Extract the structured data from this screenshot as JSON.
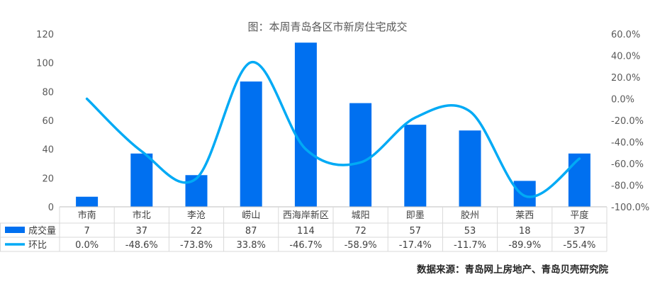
{
  "chart_data": {
    "type": "bar",
    "title": "图：本周青岛各区市新房住宅成交",
    "categories": [
      "市南",
      "市北",
      "李沧",
      "崂山",
      "西海岸新区",
      "城阳",
      "即墨",
      "胶州",
      "莱西",
      "平度"
    ],
    "series": [
      {
        "name": "成交量",
        "type": "bar",
        "axis": "left",
        "color": "#0070F0",
        "values": [
          7,
          37,
          22,
          87,
          114,
          72,
          57,
          53,
          18,
          37
        ],
        "labels": [
          "7",
          "37",
          "22",
          "87",
          "114",
          "72",
          "57",
          "53",
          "18",
          "37"
        ]
      },
      {
        "name": "环比",
        "type": "line",
        "axis": "right",
        "color": "#00AAF5",
        "values": [
          0.0,
          -48.6,
          -73.8,
          33.8,
          -46.7,
          -58.9,
          -17.4,
          -11.7,
          -89.9,
          -55.4
        ],
        "labels": [
          "0.0%",
          "-48.6%",
          "-73.8%",
          "33.8%",
          "-46.7%",
          "-58.9%",
          "-17.4%",
          "-11.7%",
          "-89.9%",
          "-55.4%"
        ]
      }
    ],
    "y_left": {
      "min": 0,
      "max": 120,
      "ticks": [
        "0",
        "20",
        "40",
        "60",
        "80",
        "100",
        "120"
      ]
    },
    "y_right": {
      "min": -100,
      "max": 60,
      "ticks": [
        "-100.0%",
        "-80.0%",
        "-60.0%",
        "-40.0%",
        "-20.0%",
        "0.0%",
        "20.0%",
        "40.0%",
        "60.0%"
      ]
    },
    "legend": "data-table",
    "grid": false,
    "source": "数据来源：青岛网上房地产、青岛贝壳研究院"
  }
}
